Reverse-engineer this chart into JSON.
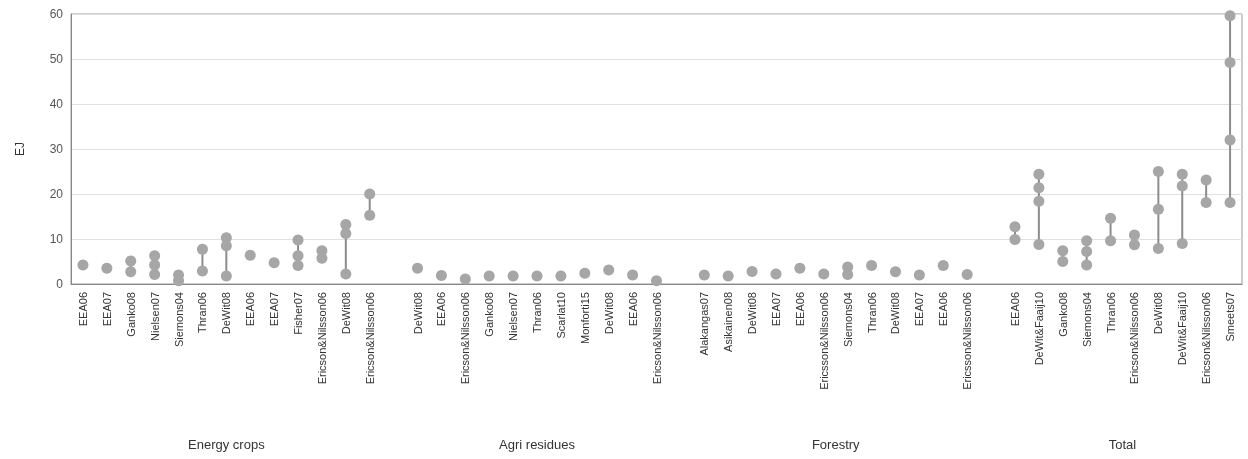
{
  "chart_data": {
    "type": "scatter",
    "ylabel": "EJ",
    "categories": [
      "EEA06",
      "EEA07",
      "Ganko08",
      "Nielsen07",
      "Siemons04",
      "Thran06",
      "DeWit08",
      "EEA06",
      "EEA07",
      "Fisher07",
      "Ericson&Nilsson06",
      "DeWit08",
      "Ericson&Nilsson06",
      null,
      "DeWit08",
      "EEA06",
      "Ericson&Nilsson06",
      "Ganko08",
      "Nielsen07",
      "Thran06",
      "Scarlat10",
      "Monforti15",
      "DeWit08",
      "EEA06",
      "Ericson&Nilsson06",
      null,
      "Alakangas07",
      "Asikainen08",
      "DeWit08",
      "EEA07",
      "EEA06",
      "Ericsson&Nilsson06",
      "Siemons04",
      "Thran06",
      "DeWit08",
      "EEA07",
      "EEA06",
      "Ericsson&Nilsson06",
      null,
      "EEA06",
      "DeWit&Faaij10",
      "Ganko08",
      "Siemons04",
      "Thran06",
      "Ericson&Nilsson06",
      "DeWit08",
      "DeWit&Faaij10",
      "Ericson&Nilsson06",
      "Smeets07"
    ],
    "series": [
      {
        "color": "#a6a6a6",
        "values": [
          4.2,
          3.5,
          5.1,
          6.3,
          2.0,
          7.7,
          10.3,
          6.4,
          4.7,
          9.8,
          7.4,
          13.2,
          20,
          null,
          3.5,
          1.9,
          1.1,
          1.8,
          1.8,
          1.8,
          1.8,
          2.4,
          3.1,
          2.0,
          0.7,
          null,
          2.0,
          1.8,
          2.8,
          2.2,
          3.5,
          2.2,
          3.8,
          4.1,
          2.7,
          2.0,
          4.1,
          2.1,
          null,
          12.7,
          24.4,
          7.4,
          9.6,
          14.6,
          10.9,
          25.0,
          24.4,
          23.1,
          59.6
        ]
      },
      {
        "color": "#a6a6a6",
        "values": [
          null,
          null,
          2.7,
          4.2,
          0.7,
          2.9,
          8.5,
          null,
          null,
          6.3,
          5.7,
          11.2,
          15.3,
          null,
          null,
          null,
          null,
          null,
          null,
          null,
          null,
          null,
          null,
          null,
          null,
          null,
          null,
          null,
          null,
          null,
          null,
          null,
          2.1,
          null,
          null,
          null,
          null,
          null,
          null,
          9.9,
          21.4,
          5.0,
          7.2,
          null,
          8.7,
          16.6,
          21.8,
          18.1,
          49.2
        ]
      },
      {
        "color": "#a6a6a6",
        "values": [
          null,
          null,
          null,
          2.1,
          null,
          null,
          1.8,
          null,
          null,
          4.1,
          null,
          2.2,
          null,
          null,
          null,
          null,
          null,
          null,
          null,
          null,
          null,
          null,
          null,
          null,
          null,
          null,
          null,
          null,
          null,
          null,
          null,
          null,
          null,
          null,
          null,
          null,
          null,
          null,
          null,
          null,
          18.4,
          null,
          4.2,
          9.6,
          null,
          7.9,
          9.0,
          null,
          32.0
        ]
      },
      {
        "color": "#a6a6a6",
        "values": [
          null,
          null,
          null,
          null,
          null,
          null,
          null,
          null,
          null,
          null,
          null,
          null,
          null,
          null,
          null,
          null,
          null,
          null,
          null,
          null,
          null,
          null,
          null,
          null,
          null,
          null,
          null,
          null,
          null,
          null,
          null,
          null,
          null,
          null,
          null,
          null,
          null,
          null,
          null,
          null,
          8.8,
          null,
          null,
          null,
          null,
          null,
          null,
          null,
          18.1
        ]
      }
    ],
    "ylim": [
      0,
      60
    ],
    "yticks": [
      0,
      10,
      20,
      30,
      40,
      50,
      60
    ],
    "grid": "y",
    "marker": "circle",
    "annotations": [
      "Energy crops",
      "Agri residues",
      "Forestry",
      "Total"
    ]
  }
}
